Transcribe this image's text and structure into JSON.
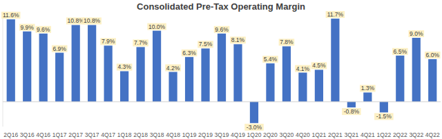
{
  "chart_data": {
    "type": "bar",
    "title": "Consolidated Pre-Tax Operating Margin",
    "categories": [
      "2Q16",
      "3Q16",
      "4Q16",
      "1Q17",
      "2Q17",
      "3Q17",
      "4Q17",
      "1Q18",
      "2Q18",
      "3Q18",
      "4Q18",
      "1Q19",
      "2Q19",
      "3Q19",
      "4Q19",
      "1Q20",
      "2Q20",
      "3Q20",
      "4Q20",
      "1Q21",
      "2Q21",
      "3Q21",
      "4Q21",
      "1Q22",
      "2Q22",
      "3Q22",
      "4Q22"
    ],
    "values": [
      11.6,
      9.9,
      9.6,
      6.9,
      10.8,
      10.8,
      7.9,
      4.3,
      7.7,
      10.0,
      4.2,
      6.3,
      7.5,
      9.6,
      8.1,
      -3.0,
      5.4,
      7.8,
      4.1,
      4.5,
      11.7,
      -0.8,
      1.3,
      -1.5,
      6.5,
      9.0,
      6.0
    ],
    "value_labels": [
      "11.6%",
      "9.9%",
      "9.6%",
      "6.9%",
      "10.8%",
      "10.8%",
      "7.9%",
      "4.3%",
      "7.7%",
      "10.0%",
      "4.2%",
      "6.3%",
      "7.5%",
      "9.6%",
      "8.1%",
      "-3.0%",
      "5.4%",
      "7.8%",
      "4.1%",
      "4.5%",
      "11.7%",
      "-0.8%",
      "1.3%",
      "-1.5%",
      "6.5%",
      "9.0%",
      "6.0%"
    ],
    "color": "#4472c4",
    "ylim": [
      -3.5,
      12.0
    ],
    "grid": false,
    "data_labels": true,
    "tick_labels": "x"
  }
}
